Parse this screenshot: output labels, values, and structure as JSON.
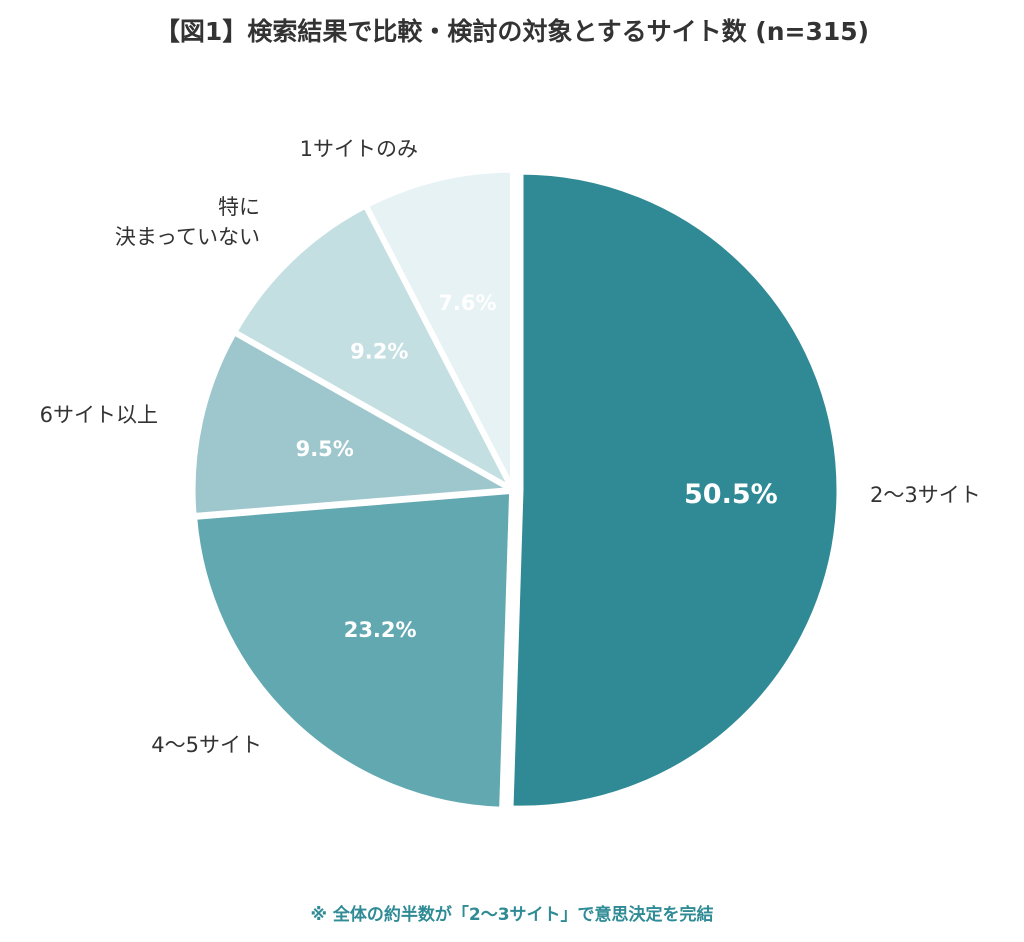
{
  "chart_data": {
    "type": "pie",
    "title": "【図1】検索結果で比較・検討の対象とするサイト数 (n=315)",
    "slices": [
      {
        "label": "2〜3サイト",
        "value": 50.5,
        "display": "50.5%",
        "color": "#2f8a95"
      },
      {
        "label": "4〜5サイト",
        "value": 23.2,
        "display": "23.2%",
        "color": "#61a8b0"
      },
      {
        "label": "6サイト以上",
        "value": 9.5,
        "display": "9.5%",
        "color": "#9dc7cc"
      },
      {
        "label": "特に\n決まっていない",
        "value": 9.2,
        "display": "9.2%",
        "color": "#c4dfe2"
      },
      {
        "label": "1サイトのみ",
        "value": 7.6,
        "display": "7.6%",
        "color": "#e6f2f4"
      }
    ]
  },
  "footnote": "※ 全体の約半数が「2〜3サイト」で意思決定を完結"
}
